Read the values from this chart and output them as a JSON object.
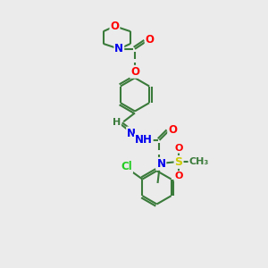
{
  "bg_color": "#ebebeb",
  "bond_color": "#3a7a3a",
  "atom_colors": {
    "O": "#ff0000",
    "N": "#0000ee",
    "S": "#cccc00",
    "Cl": "#22cc22",
    "C": "#3a7a3a",
    "H": "#3a7a3a"
  },
  "figsize": [
    3.0,
    3.0
  ],
  "dpi": 100
}
